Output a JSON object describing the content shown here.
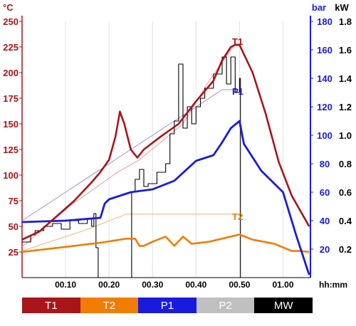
{
  "chart_data": {
    "type": "line",
    "axes": {
      "left": {
        "unit_label": "°C",
        "range": [
          0,
          250
        ],
        "ticks": [
          "25",
          "50",
          "75",
          "100",
          "125",
          "150",
          "175",
          "200",
          "225",
          "250"
        ],
        "color": "#a8151b"
      },
      "right_inner": {
        "unit_label": "bar",
        "range": [
          0,
          180
        ],
        "ticks": [
          "20",
          "40",
          "60",
          "80",
          "100",
          "120",
          "140",
          "160",
          "180"
        ],
        "color": "#1a1adf"
      },
      "right_outer": {
        "unit_label": "kW",
        "range": [
          0,
          1.8
        ],
        "ticks": [
          "0.2",
          "0.4",
          "0.6",
          "0.8",
          "1.0",
          "1.2",
          "1.4",
          "1.6",
          "1.8"
        ],
        "color": "#000000"
      },
      "x": {
        "unit_label": "hh:mm",
        "ticks": [
          "00.10",
          "00.20",
          "00.30",
          "00.40",
          "00.50",
          "01.00"
        ],
        "color": "#000000"
      }
    },
    "grid": {
      "vertical": true,
      "horizontal": false
    },
    "annotations": [
      "T1",
      "P1",
      "T2"
    ],
    "series": [
      {
        "name": "T1",
        "axis": "left",
        "color": "#a8151b",
        "x": [
          0,
          4,
          8,
          12,
          16,
          18,
          20,
          21.5,
          22.5,
          23.5,
          25,
          26.5,
          28,
          32,
          36,
          40,
          44,
          46,
          48,
          49,
          50,
          53,
          56,
          59,
          62,
          66
        ],
        "y": [
          37,
          45,
          60,
          75,
          93,
          103,
          115,
          138,
          162,
          150,
          125,
          117,
          125,
          138,
          150,
          172,
          192,
          212,
          225,
          227,
          227,
          200,
          160,
          113,
          80,
          50
        ]
      },
      {
        "name": "T1 setpoint",
        "axis": "left",
        "color": "#ee9a9a",
        "x": [
          0,
          11,
          22,
          27,
          37,
          43,
          49,
          50
        ],
        "y": [
          30,
          70,
          103,
          115,
          150,
          192,
          228,
          228
        ]
      },
      {
        "name": "T2",
        "axis": "left",
        "color": "#f07d00",
        "x": [
          0,
          6,
          12,
          18,
          24,
          26,
          27,
          28,
          30,
          33,
          35,
          37,
          39,
          43,
          47,
          50,
          53,
          58,
          62,
          64,
          66
        ],
        "y": [
          25,
          28,
          31,
          34,
          38,
          38,
          31,
          31,
          35,
          40,
          31,
          40,
          33,
          35,
          39,
          42,
          37,
          33,
          26,
          26,
          25
        ]
      },
      {
        "name": "T2 setpoint",
        "axis": "left",
        "color": "#f5b16e",
        "x": [
          0,
          15,
          24,
          50
        ],
        "y": [
          26,
          47,
          62,
          62
        ]
      },
      {
        "name": "P1",
        "axis": "right_inner",
        "color": "#1a1adf",
        "x": [
          0,
          10,
          18,
          19,
          20,
          25,
          30,
          35,
          40,
          44,
          46,
          48,
          50,
          51,
          55,
          60,
          63,
          66
        ],
        "y": [
          39,
          40,
          42,
          52,
          55,
          60,
          62,
          68,
          82,
          86,
          95,
          105,
          110,
          94,
          75,
          60,
          30,
          2
        ]
      },
      {
        "name": "P1 setpoint",
        "axis": "right_inner",
        "color": "#8f8ff0",
        "x": [
          0,
          10,
          20,
          30,
          40,
          46,
          50
        ],
        "y": [
          40,
          60,
          80,
          100,
          120,
          132,
          132
        ]
      },
      {
        "name": "MW",
        "axis": "right_outer",
        "color": "#000000",
        "x": [
          0,
          2,
          3,
          5,
          7,
          9,
          11,
          13,
          15,
          16,
          16.5,
          17,
          17.5,
          25,
          25.2,
          26,
          27,
          28,
          29,
          31,
          33,
          34,
          35,
          36,
          37,
          38,
          39,
          40,
          41,
          42,
          44,
          46,
          47,
          48,
          49,
          50,
          50.2
        ],
        "y": [
          0.25,
          0.3,
          0.33,
          0.36,
          0.38,
          0.34,
          0.4,
          0.38,
          0.41,
          0.36,
          0.45,
          0.21,
          0,
          0,
          0.6,
          0.69,
          0.76,
          0.64,
          0.66,
          0.74,
          0.8,
          1.01,
          1.1,
          1.5,
          1.05,
          1.2,
          1.08,
          1.2,
          1.26,
          1.33,
          1.43,
          1.55,
          1.36,
          1.55,
          1.3,
          1.4,
          0
        ]
      }
    ],
    "legend": {
      "placement": "bottom",
      "items": [
        {
          "label": "T1",
          "color": "#a8151b"
        },
        {
          "label": "T2",
          "color": "#f07d00"
        },
        {
          "label": "P1",
          "color": "#1a1adf"
        },
        {
          "label": "P2",
          "color": "#c0c0c0"
        },
        {
          "label": "MW",
          "color": "#000000"
        }
      ]
    }
  }
}
